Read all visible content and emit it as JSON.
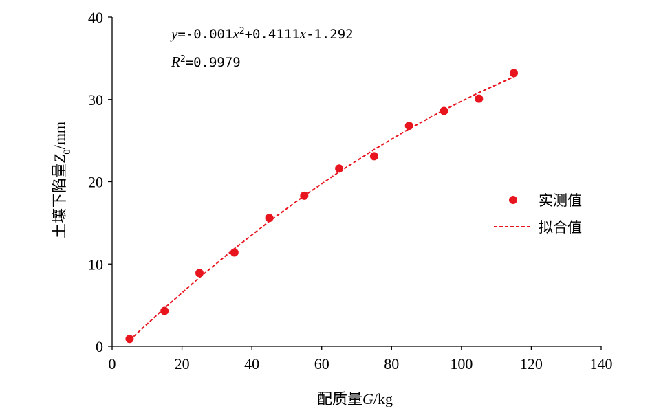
{
  "chart_data": {
    "type": "scatter",
    "xlabel": "配质量G/kg",
    "ylabel": "土壤下陷量Z0/mm",
    "xlim": [
      0,
      140
    ],
    "ylim": [
      0,
      40
    ],
    "x_ticks": [
      "0",
      "20",
      "40",
      "60",
      "80",
      "100",
      "120",
      "140"
    ],
    "y_ticks": [
      "0",
      "10",
      "20",
      "30",
      "40"
    ],
    "grid": false,
    "legend_position": "right",
    "series": [
      {
        "name": "实测值",
        "kind": "scatter",
        "color": "#e8141e",
        "x": [
          5,
          15,
          25,
          35,
          45,
          55,
          65,
          75,
          85,
          95,
          105,
          115
        ],
        "y": [
          0.9,
          4.3,
          8.9,
          11.4,
          15.6,
          18.3,
          21.6,
          23.1,
          26.8,
          28.6,
          30.1,
          33.2
        ]
      },
      {
        "name": "拟合值",
        "kind": "line",
        "style": "dashed",
        "color": "#e8141e",
        "x": [
          5,
          15,
          25,
          35,
          45,
          55,
          65,
          75,
          85,
          95,
          105,
          115
        ],
        "y": [
          0.74,
          4.65,
          8.36,
          11.87,
          15.18,
          18.3,
          21.2,
          23.91,
          26.42,
          28.72,
          30.83,
          32.74
        ]
      }
    ],
    "annotations": {
      "equation": {
        "y": "y",
        "rhs1": "=-0.001",
        "x1": "x",
        "exp": "2",
        "rhs2": "+0.4111",
        "x2": "x",
        "rhs3": "-1.292"
      },
      "r2": {
        "r": "R",
        "exp": "2",
        "value": "=0.9979"
      }
    },
    "axis_label_parts": {
      "xlabel_prefix": "配质量",
      "xlabel_var": "G",
      "xlabel_unit": "/kg",
      "ylabel_prefix": "土壤下陷量",
      "ylabel_var": "Z",
      "ylabel_sub": "0",
      "ylabel_unit": "/mm"
    }
  }
}
